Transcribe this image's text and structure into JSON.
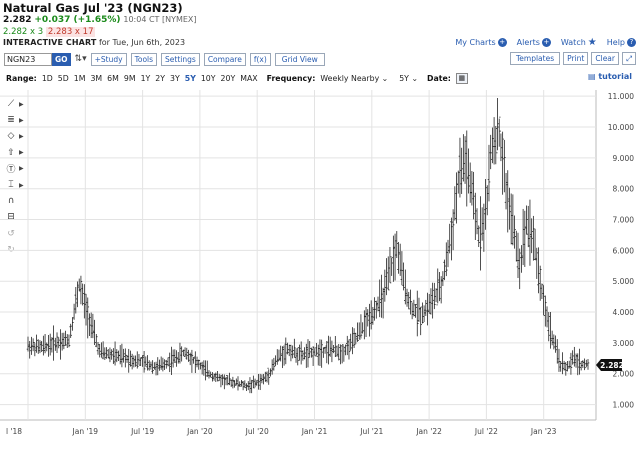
{
  "header": {
    "title": "Natural Gas Jul '23 (NGN23)",
    "last": "2.282",
    "change": "+0.037 (+1.65%)",
    "time": "10:04 CT [NYMEX]",
    "bid": "2.282 x 3",
    "ask": "2.283 x 17",
    "chart_label": "INTERACTIVE CHART",
    "chart_date": "for Tue, Jun 6th, 2023"
  },
  "links": {
    "my_charts": "My Charts",
    "alerts": "Alerts",
    "watch": "Watch",
    "help": "Help"
  },
  "toolbar": {
    "symbol": "NGN23",
    "go": "GO",
    "study": "+Study",
    "tools": "Tools",
    "settings": "Settings",
    "compare": "Compare",
    "fx": "f(x)",
    "grid_view": "Grid View",
    "templates": "Templates",
    "print": "Print",
    "clear": "Clear"
  },
  "range": {
    "label": "Range:",
    "options": [
      "1D",
      "5D",
      "1M",
      "3M",
      "6M",
      "9M",
      "1Y",
      "2Y",
      "3Y",
      "5Y",
      "10Y",
      "20Y",
      "MAX"
    ],
    "selected": "5Y",
    "frequency_label": "Frequency:",
    "frequency_value": "Weekly Nearby",
    "period_value": "5Y",
    "date_label": "Date:",
    "tutorial": "tutorial"
  },
  "colors": {
    "accent": "#2a5db0",
    "up": "#1a8a1a",
    "down": "#c0392b"
  },
  "chart_data": {
    "type": "ohlc",
    "x_tick_labels": [
      "l '18",
      "Jan '19",
      "Jul '19",
      "Jan '20",
      "Jul '20",
      "Jan '21",
      "Jul '21",
      "Jan '22",
      "Jul '22",
      "Jan '23"
    ],
    "y_tick_labels": [
      "1.000",
      "2.000",
      "3.000",
      "4.000",
      "5.000",
      "6.000",
      "7.000",
      "8.000",
      "9.000",
      "10.000",
      "11.000"
    ],
    "ylim": [
      0.5,
      11.2
    ],
    "last_price_label": "2.282",
    "grid": true,
    "anchors": [
      [
        0,
        2.9
      ],
      [
        8,
        2.85
      ],
      [
        16,
        3.0
      ],
      [
        24,
        3.1
      ],
      [
        30,
        4.9
      ],
      [
        34,
        4.1
      ],
      [
        38,
        3.4
      ],
      [
        42,
        2.7
      ],
      [
        50,
        2.6
      ],
      [
        58,
        2.5
      ],
      [
        66,
        2.4
      ],
      [
        76,
        2.2
      ],
      [
        86,
        2.5
      ],
      [
        92,
        2.7
      ],
      [
        98,
        2.4
      ],
      [
        106,
        2.0
      ],
      [
        114,
        1.8
      ],
      [
        122,
        1.7
      ],
      [
        128,
        1.6
      ],
      [
        134,
        1.7
      ],
      [
        140,
        1.9
      ],
      [
        146,
        2.5
      ],
      [
        152,
        2.8
      ],
      [
        160,
        2.6
      ],
      [
        168,
        2.7
      ],
      [
        176,
        2.8
      ],
      [
        184,
        2.7
      ],
      [
        190,
        3.0
      ],
      [
        196,
        3.5
      ],
      [
        202,
        4.0
      ],
      [
        208,
        4.5
      ],
      [
        212,
        5.3
      ],
      [
        216,
        6.1
      ],
      [
        220,
        5.0
      ],
      [
        224,
        4.2
      ],
      [
        230,
        3.9
      ],
      [
        236,
        4.3
      ],
      [
        242,
        4.8
      ],
      [
        248,
        6.5
      ],
      [
        252,
        8.2
      ],
      [
        256,
        9.0
      ],
      [
        260,
        7.8
      ],
      [
        264,
        6.5
      ],
      [
        268,
        7.2
      ],
      [
        272,
        9.5
      ],
      [
        276,
        9.8
      ],
      [
        280,
        8.0
      ],
      [
        284,
        6.8
      ],
      [
        288,
        5.5
      ],
      [
        292,
        7.0
      ],
      [
        296,
        6.4
      ],
      [
        300,
        5.0
      ],
      [
        304,
        3.8
      ],
      [
        308,
        3.0
      ],
      [
        312,
        2.3
      ],
      [
        316,
        2.2
      ],
      [
        320,
        2.5
      ],
      [
        324,
        2.3
      ],
      [
        328,
        2.3
      ]
    ]
  }
}
